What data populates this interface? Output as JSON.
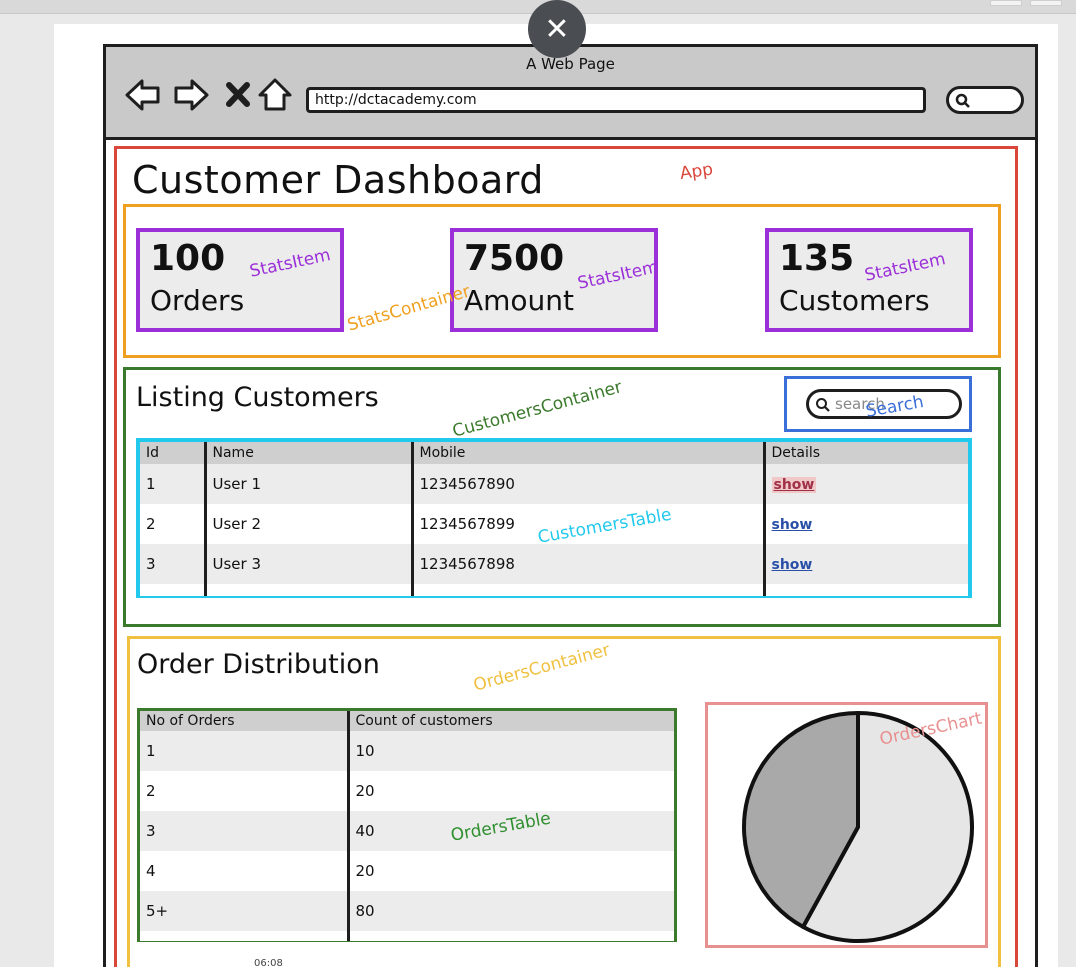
{
  "browser": {
    "title": "A Web Page",
    "url": "http://dctacademy.com"
  },
  "app": {
    "annotation": "App",
    "title": "Customer Dashboard"
  },
  "stats": {
    "container_annotation": "StatsContainer",
    "item_annotation": "StatsItem",
    "items": [
      {
        "value": "100",
        "label": "Orders"
      },
      {
        "value": "7500",
        "label": "Amount"
      },
      {
        "value": "135",
        "label": "Customers"
      }
    ]
  },
  "customers": {
    "container_annotation": "CustomersContainer",
    "title": "Listing Customers",
    "search_annotation": "Search",
    "search_placeholder": "search",
    "table_annotation": "CustomersTable",
    "columns": [
      "Id",
      "Name",
      "Mobile",
      "Details"
    ],
    "rows": [
      {
        "id": "1",
        "name": "User 1",
        "mobile": "1234567890",
        "details": "show"
      },
      {
        "id": "2",
        "name": "User 2",
        "mobile": "1234567899",
        "details": "show"
      },
      {
        "id": "3",
        "name": "User 3",
        "mobile": "1234567898",
        "details": "show"
      }
    ]
  },
  "orders": {
    "container_annotation": "OrdersContainer",
    "title": "Order Distribution",
    "table_annotation": "OrdersTable",
    "chart_annotation": "OrdersChart",
    "columns": [
      "No of Orders",
      "Count of customers"
    ],
    "rows": [
      {
        "orders": "1",
        "count": "10"
      },
      {
        "orders": "2",
        "count": "20"
      },
      {
        "orders": "3",
        "count": "40"
      },
      {
        "orders": "4",
        "count": "20"
      },
      {
        "orders": "5+",
        "count": "80"
      }
    ]
  },
  "chart_data": {
    "type": "pie",
    "values": [
      58,
      42
    ],
    "colors": [
      "#e6e6e6",
      "#a9a9a9"
    ]
  },
  "footer": {
    "timestamp": "06:08"
  },
  "colors": {
    "app": "#d9463a",
    "stats_container": "#f0a020",
    "stats_item": "#9b30d9",
    "customers_container": "#3b7a2c",
    "search": "#3a6fd8",
    "customers_table": "#22c9ec",
    "orders_container": "#f0c040",
    "orders_table": "#2f8f2f",
    "orders_chart": "#e89090"
  }
}
